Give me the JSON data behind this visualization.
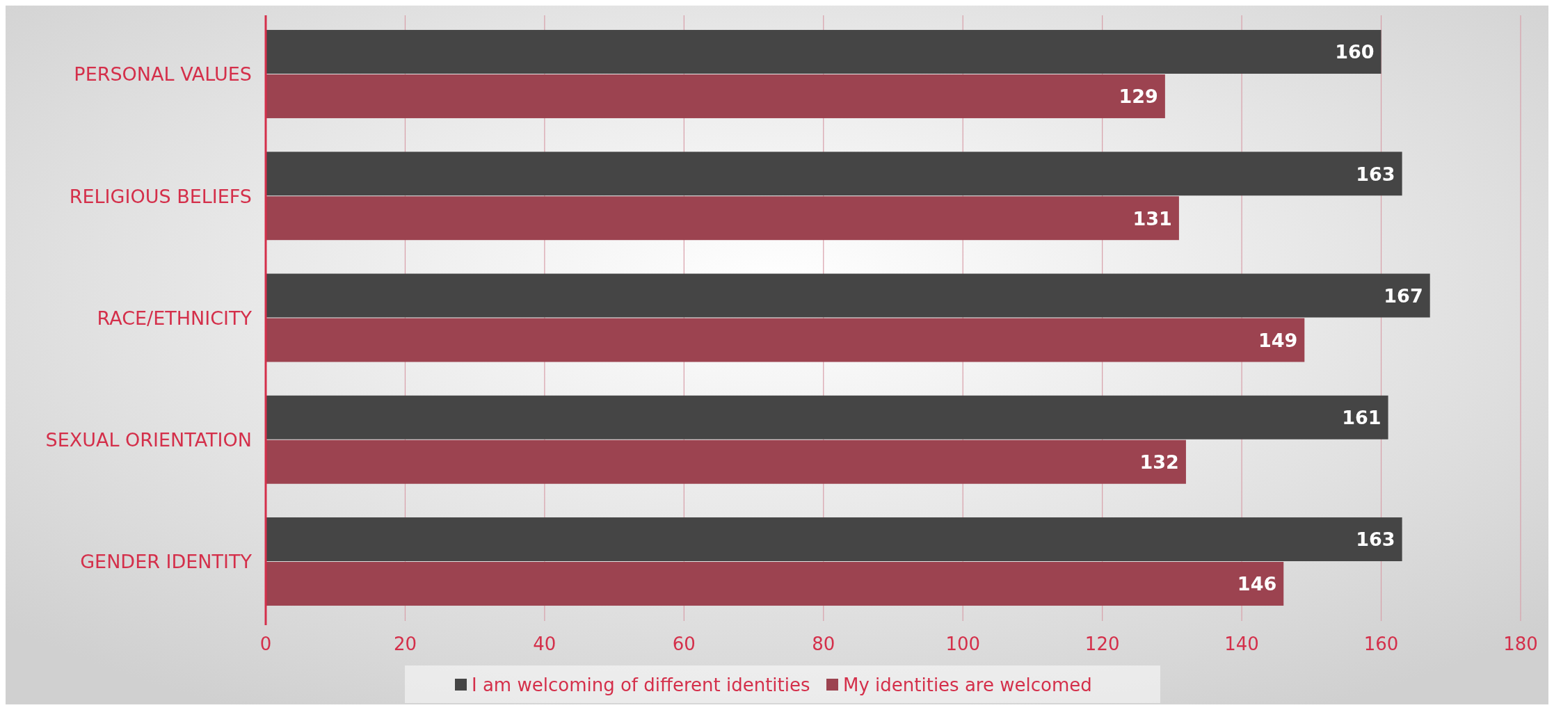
{
  "chart_data": {
    "type": "bar",
    "orientation": "horizontal",
    "categories": [
      "PERSONAL VALUES",
      "RELIGIOUS BELIEFS",
      "RACE/ETHNICITY",
      "SEXUAL ORIENTATION",
      "GENDER IDENTITY"
    ],
    "series": [
      {
        "name": "I am welcoming of different identities",
        "color": "#454545",
        "values": [
          160,
          163,
          167,
          161,
          163
        ]
      },
      {
        "name": "My identities are welcomed",
        "color": "#9c4350",
        "values": [
          129,
          131,
          149,
          132,
          146
        ]
      }
    ],
    "xlim": [
      0,
      180
    ],
    "xticks": [
      0,
      20,
      40,
      60,
      80,
      100,
      120,
      140,
      160,
      180
    ],
    "grid": "x",
    "data_labels": true,
    "legend": "bottom"
  }
}
